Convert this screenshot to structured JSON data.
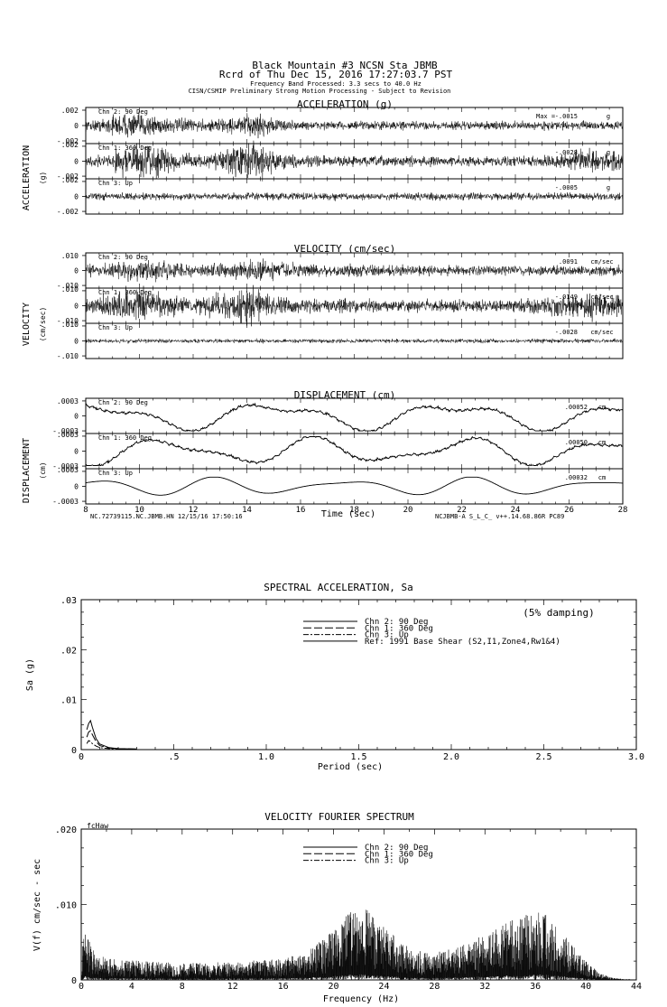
{
  "header": {
    "station": "Black Mountain #3    NCSN Sta JBMB",
    "record": "Rcrd of Thu Dec 15, 2016 17:27:03.7 PST",
    "band": "Frequency Band Processed: 3.3 secs to 40.0 Hz",
    "processing": "CISN/CSMIP Preliminary Strong Motion Processing - Subject to Revision"
  },
  "footer": {
    "record_id": "NC.72739115.NC.JBMB.HN 12/15/16 17:50:16",
    "station_code": "NCJBMB-A  S_L_C_  v++.14.68.86R PC89"
  },
  "chart_data": [
    {
      "type": "line",
      "title": "ACCELERATION (g)",
      "ylabel": "ACCELERATION",
      "yunit": "(g)",
      "xlim": [
        8,
        28
      ],
      "max_label": "Max =",
      "channels": [
        {
          "name": "Chn 2: 90 Deg",
          "peak": "-.0015",
          "unit": "g",
          "yticks": [
            ".002",
            "0",
            "-.002"
          ],
          "amplitude": 0.0015
        },
        {
          "name": "Chn 1: 360 Deg",
          "peak": "-.0028",
          "unit": "g",
          "yticks": [
            ".002",
            "0",
            "-.002"
          ],
          "amplitude": 0.0028
        },
        {
          "name": "Chn 3: Up",
          "peak": "-.0005",
          "unit": "g",
          "yticks": [
            ".002",
            "0",
            "-.002"
          ],
          "amplitude": 0.0005
        }
      ]
    },
    {
      "type": "line",
      "title": "VELOCITY (cm/sec)",
      "ylabel": "VELOCITY",
      "yunit": "(cm/sec)",
      "xlim": [
        8,
        28
      ],
      "channels": [
        {
          "name": "Chn 2: 90 Deg",
          "peak": ".0091",
          "unit": "cm/sec",
          "yticks": [
            ".010",
            "0",
            "-.010"
          ],
          "amplitude": 0.0091
        },
        {
          "name": "Chn 1: 360 Deg",
          "peak": "-.0149",
          "unit": "cm/sec",
          "yticks": [
            ".010",
            "0",
            "-.010"
          ],
          "amplitude": 0.0149
        },
        {
          "name": "Chn 3: Up",
          "peak": "-.0028",
          "unit": "cm/sec",
          "yticks": [
            ".010",
            "0",
            "-.010"
          ],
          "amplitude": 0.0028
        }
      ]
    },
    {
      "type": "line",
      "title": "DISPLACEMENT (cm)",
      "ylabel": "DISPLACEMENT",
      "yunit": "(cm)",
      "xlabel": "Time (sec)",
      "xlim": [
        8,
        28
      ],
      "xticks": [
        "8",
        "10",
        "12",
        "14",
        "16",
        "18",
        "20",
        "22",
        "24",
        "26",
        "28"
      ],
      "channels": [
        {
          "name": "Chn 2: 90 Deg",
          "peak": ".00052",
          "unit": "cm",
          "yticks": [
            ".0003",
            "0",
            "-.0003"
          ],
          "amplitude": 0.00052
        },
        {
          "name": "Chn 1: 360 Deg",
          "peak": ".00050",
          "unit": "cm",
          "yticks": [
            ".0003",
            "0",
            "-.0003"
          ],
          "amplitude": 0.0005
        },
        {
          "name": "Chn 3: Up",
          "peak": ".00032",
          "unit": "cm",
          "yticks": [
            ".0003",
            "0",
            "-.0003"
          ],
          "amplitude": 0.00032
        }
      ]
    },
    {
      "type": "line",
      "title": "SPECTRAL ACCELERATION, Sa",
      "ylabel": "Sa (g)",
      "xlabel": "Period (sec)",
      "note": "(5% damping)",
      "xlim": [
        0,
        3.0
      ],
      "ylim": [
        0,
        0.03
      ],
      "xticks": [
        0,
        0.5,
        1.0,
        1.5,
        2.0,
        2.5,
        3.0
      ],
      "xtick_labels": [
        "0",
        ".5",
        "1.0",
        "1.5",
        "2.0",
        "2.5",
        "3.0"
      ],
      "yticks": [
        0,
        0.01,
        0.02,
        0.03
      ],
      "ytick_labels": [
        "0",
        ".01",
        ".02",
        ".03"
      ],
      "legend": [
        "Chn 2: 90 Deg",
        "Chn 1: 360 Deg",
        "Chn 3: Up",
        "Ref: 1991 Base Shear (S2,I1,Zone4,Rw1&4)"
      ],
      "series": [
        {
          "name": "Chn 2: 90 Deg",
          "x": [
            0.03,
            0.04,
            0.05,
            0.06,
            0.08,
            0.1,
            0.15,
            0.2,
            0.3
          ],
          "y": [
            0.004,
            0.0052,
            0.0058,
            0.0045,
            0.0022,
            0.0011,
            0.0004,
            0.0002,
            0.0001
          ]
        },
        {
          "name": "Chn 1: 360 Deg",
          "x": [
            0.03,
            0.04,
            0.05,
            0.06,
            0.08,
            0.1,
            0.15,
            0.2,
            0.3
          ],
          "y": [
            0.0025,
            0.0035,
            0.0038,
            0.003,
            0.0016,
            0.0008,
            0.0003,
            0.0002,
            0.0001
          ]
        },
        {
          "name": "Chn 3: Up",
          "x": [
            0.03,
            0.04,
            0.05,
            0.06,
            0.08,
            0.1,
            0.15,
            0.2,
            0.3
          ],
          "y": [
            0.0012,
            0.0018,
            0.0016,
            0.0012,
            0.0007,
            0.0004,
            0.0002,
            0.0001,
            5e-05
          ]
        }
      ]
    },
    {
      "type": "line",
      "title": "VELOCITY FOURIER SPECTRUM",
      "ylabel": "V(f)  cm/sec - sec",
      "xlabel": "Frequency (Hz)",
      "corner_label": "fcHaw",
      "xlim": [
        0,
        44
      ],
      "ylim": [
        0,
        0.02
      ],
      "xticks": [
        0,
        4,
        8,
        12,
        16,
        20,
        24,
        28,
        32,
        36,
        40,
        44
      ],
      "xtick_labels": [
        "0",
        "4",
        "8",
        "12",
        "16",
        "20",
        "24",
        "28",
        "32",
        "36",
        "40",
        "44"
      ],
      "yticks": [
        0,
        0.01,
        0.02
      ],
      "ytick_labels": [
        "0",
        ".010",
        ".020"
      ],
      "legend": [
        "Chn 2: 90 Deg",
        "Chn 1: 360 Deg",
        "Chn 3: Up"
      ],
      "envelope": {
        "x": [
          0,
          0.3,
          1,
          2,
          4,
          8,
          12,
          16,
          18,
          20,
          21,
          22,
          22.5,
          23,
          24,
          26,
          28,
          30,
          32,
          34,
          35,
          36,
          37,
          38,
          39,
          40,
          41,
          42,
          43
        ],
        "y": [
          0.0035,
          0.0065,
          0.004,
          0.003,
          0.0026,
          0.0022,
          0.0024,
          0.0028,
          0.004,
          0.0065,
          0.0085,
          0.01,
          0.0095,
          0.0088,
          0.007,
          0.0042,
          0.0036,
          0.0045,
          0.006,
          0.0078,
          0.0088,
          0.0092,
          0.0085,
          0.0065,
          0.0045,
          0.0025,
          0.001,
          0.0003,
          0.0001
        ]
      }
    }
  ]
}
